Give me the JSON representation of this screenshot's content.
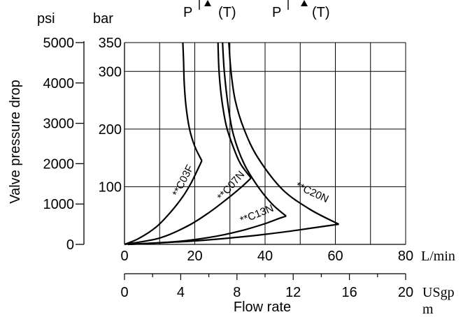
{
  "chart_data": {
    "type": "line",
    "header": {
      "symbols": [
        {
          "p": "P",
          "t": "(T)"
        },
        {
          "p": "P",
          "t": "(T)"
        }
      ]
    },
    "ylabel": "Valve pressure drop",
    "xlabel": "Flow rate",
    "y_axis_bar": {
      "unit": "bar",
      "range": [
        0,
        350
      ],
      "ticks": [
        100,
        200,
        300,
        350
      ]
    },
    "y_axis_psi": {
      "unit": "psi",
      "range": [
        0,
        5000
      ],
      "ticks": [
        0,
        1000,
        2000,
        3000,
        4000,
        5000
      ]
    },
    "x_axis_lmin": {
      "unit": "L/min",
      "range": [
        0,
        80
      ],
      "ticks": [
        0,
        20,
        40,
        60,
        80
      ],
      "grid": [
        0,
        10,
        20,
        30,
        40,
        50,
        60,
        70,
        80
      ]
    },
    "x_axis_usgpm": {
      "unit_line1": "USgp",
      "unit_line2": "m",
      "range": [
        0,
        20
      ],
      "ticks": [
        0,
        4,
        8,
        12,
        16,
        20
      ],
      "minor_ticks": [
        0,
        2,
        4,
        6,
        8,
        10,
        12,
        14,
        16,
        18,
        20
      ]
    },
    "grid": true,
    "series": [
      {
        "name": "**C03F",
        "label_at": {
          "x": 17.5,
          "bar": 108
        },
        "curves": [
          [
            [
              0,
              0
            ],
            [
              4,
              10
            ],
            [
              9,
              30
            ],
            [
              13,
              55
            ],
            [
              16.5,
              82
            ],
            [
              19,
              107
            ],
            [
              21,
              132
            ],
            [
              22,
              145
            ]
          ],
          [
            [
              22,
              145
            ],
            [
              20,
              170
            ],
            [
              18.5,
              200
            ],
            [
              17.5,
              240
            ],
            [
              17,
              280
            ],
            [
              16.8,
              320
            ],
            [
              16.6,
              350
            ]
          ]
        ]
      },
      {
        "name": "**C07N",
        "label_at": {
          "x": 31,
          "bar": 98
        },
        "curves": [
          [
            [
              0,
              0
            ],
            [
              10,
              11
            ],
            [
              18,
              32
            ],
            [
              24,
              55
            ],
            [
              29,
              78
            ],
            [
              33,
              98
            ],
            [
              36,
              115
            ]
          ],
          [
            [
              36,
              115
            ],
            [
              33,
              140
            ],
            [
              31,
              168
            ],
            [
              29,
              205
            ],
            [
              27.7,
              250
            ],
            [
              26.9,
              300
            ],
            [
              26.6,
              350
            ]
          ]
        ]
      },
      {
        "name": "**C13N",
        "label_at": {
          "x": 38,
          "bar": 47
        },
        "curves": [
          [
            [
              1,
              0
            ],
            [
              15,
              5
            ],
            [
              26,
              14
            ],
            [
              34,
              25
            ],
            [
              40,
              36
            ],
            [
              44,
              45
            ],
            [
              46,
              49
            ]
          ],
          [
            [
              46,
              49
            ],
            [
              42,
              70
            ],
            [
              38,
              100
            ],
            [
              34,
              140
            ],
            [
              31,
              190
            ],
            [
              29.5,
              240
            ],
            [
              28.4,
              300
            ],
            [
              27.9,
              350
            ]
          ]
        ]
      },
      {
        "name": "**C20N",
        "label_at": {
          "x": 53,
          "bar": 85
        },
        "curves": [
          [
            [
              1,
              0
            ],
            [
              20,
              6
            ],
            [
              35,
              14
            ],
            [
              46,
              22
            ],
            [
              54,
              29
            ],
            [
              61,
              35
            ]
          ],
          [
            [
              61,
              35
            ],
            [
              53,
              60
            ],
            [
              45,
              95
            ],
            [
              38,
              150
            ],
            [
              34,
              200
            ],
            [
              31.5,
              250
            ],
            [
              30.3,
              300
            ],
            [
              29.7,
              350
            ]
          ]
        ]
      }
    ]
  }
}
